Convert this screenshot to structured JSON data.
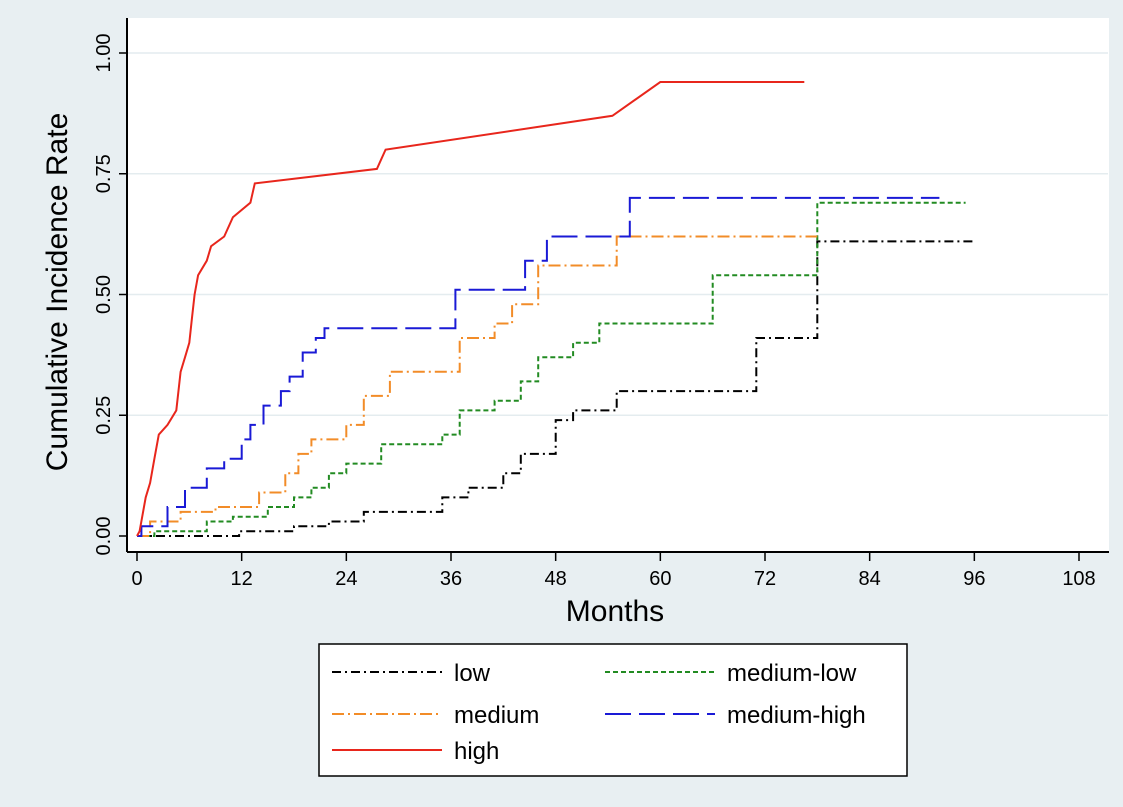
{
  "chart_data": {
    "type": "line",
    "title": "",
    "xlabel": "Months",
    "ylabel": "Cumulative Incidence Rate",
    "xlim": [
      0,
      108
    ],
    "ylim": [
      0,
      1
    ],
    "x_ticks": [
      "0",
      "12",
      "24",
      "36",
      "48",
      "60",
      "72",
      "84",
      "96",
      "108"
    ],
    "y_ticks": [
      "0.00",
      "0.25",
      "0.50",
      "0.75",
      "1.00"
    ],
    "grid": "horizontal",
    "legend_position": "bottom",
    "series": [
      {
        "name": "low",
        "color": "#000000",
        "dash": "dash-dot",
        "points": [
          [
            0,
            0
          ],
          [
            11.7,
            0
          ],
          [
            11.7,
            0.01
          ],
          [
            18,
            0.01
          ],
          [
            18,
            0.02
          ],
          [
            22,
            0.02
          ],
          [
            22,
            0.03
          ],
          [
            26,
            0.03
          ],
          [
            26,
            0.05
          ],
          [
            35,
            0.05
          ],
          [
            35,
            0.08
          ],
          [
            38,
            0.08
          ],
          [
            38,
            0.1
          ],
          [
            42,
            0.1
          ],
          [
            42,
            0.13
          ],
          [
            44,
            0.13
          ],
          [
            44,
            0.17
          ],
          [
            48,
            0.17
          ],
          [
            48,
            0.24
          ],
          [
            50,
            0.24
          ],
          [
            50,
            0.26
          ],
          [
            55,
            0.26
          ],
          [
            55,
            0.3
          ],
          [
            71,
            0.3
          ],
          [
            71,
            0.41
          ],
          [
            78,
            0.41
          ],
          [
            78,
            0.61
          ],
          [
            96,
            0.61
          ]
        ]
      },
      {
        "name": "medium-low",
        "color": "#228b22",
        "dash": "short-dash",
        "points": [
          [
            0,
            0
          ],
          [
            2,
            0
          ],
          [
            2,
            0.01
          ],
          [
            8,
            0.01
          ],
          [
            8,
            0.03
          ],
          [
            11,
            0.03
          ],
          [
            11,
            0.04
          ],
          [
            15,
            0.04
          ],
          [
            15,
            0.06
          ],
          [
            18,
            0.06
          ],
          [
            18,
            0.08
          ],
          [
            20,
            0.08
          ],
          [
            20,
            0.1
          ],
          [
            22,
            0.1
          ],
          [
            22,
            0.13
          ],
          [
            24,
            0.13
          ],
          [
            24,
            0.15
          ],
          [
            28,
            0.15
          ],
          [
            28,
            0.19
          ],
          [
            35,
            0.19
          ],
          [
            35,
            0.21
          ],
          [
            37,
            0.21
          ],
          [
            37,
            0.26
          ],
          [
            41,
            0.26
          ],
          [
            41,
            0.28
          ],
          [
            44,
            0.28
          ],
          [
            44,
            0.32
          ],
          [
            46,
            0.32
          ],
          [
            46,
            0.37
          ],
          [
            50,
            0.37
          ],
          [
            50,
            0.4
          ],
          [
            53,
            0.4
          ],
          [
            53,
            0.44
          ],
          [
            66,
            0.44
          ],
          [
            66,
            0.54
          ],
          [
            78,
            0.54
          ],
          [
            78,
            0.69
          ],
          [
            95,
            0.69
          ]
        ]
      },
      {
        "name": "medium",
        "color": "#f28c28",
        "dash": "long-dash-dot",
        "points": [
          [
            0,
            0
          ],
          [
            1.5,
            0
          ],
          [
            1.5,
            0.03
          ],
          [
            5,
            0.03
          ],
          [
            5,
            0.05
          ],
          [
            9,
            0.05
          ],
          [
            9,
            0.06
          ],
          [
            14,
            0.06
          ],
          [
            14,
            0.09
          ],
          [
            17,
            0.09
          ],
          [
            17,
            0.13
          ],
          [
            18.5,
            0.13
          ],
          [
            18.5,
            0.17
          ],
          [
            20,
            0.17
          ],
          [
            20,
            0.2
          ],
          [
            24,
            0.2
          ],
          [
            24,
            0.23
          ],
          [
            26,
            0.23
          ],
          [
            26,
            0.29
          ],
          [
            29,
            0.29
          ],
          [
            29,
            0.34
          ],
          [
            37,
            0.34
          ],
          [
            37,
            0.41
          ],
          [
            41,
            0.41
          ],
          [
            41,
            0.44
          ],
          [
            43,
            0.44
          ],
          [
            43,
            0.48
          ],
          [
            46,
            0.48
          ],
          [
            46,
            0.56
          ],
          [
            55,
            0.56
          ],
          [
            55,
            0.62
          ],
          [
            78,
            0.62
          ]
        ]
      },
      {
        "name": "medium-high",
        "color": "#1a1ad6",
        "dash": "long-dash",
        "points": [
          [
            0,
            0
          ],
          [
            0.5,
            0
          ],
          [
            0.5,
            0.02
          ],
          [
            3.5,
            0.02
          ],
          [
            3.5,
            0.06
          ],
          [
            5.5,
            0.06
          ],
          [
            5.5,
            0.1
          ],
          [
            8,
            0.1
          ],
          [
            8,
            0.14
          ],
          [
            10,
            0.14
          ],
          [
            10,
            0.16
          ],
          [
            12,
            0.16
          ],
          [
            12,
            0.2
          ],
          [
            13,
            0.2
          ],
          [
            13,
            0.23
          ],
          [
            14.5,
            0.23
          ],
          [
            14.5,
            0.27
          ],
          [
            16.5,
            0.27
          ],
          [
            16.5,
            0.3
          ],
          [
            17.5,
            0.3
          ],
          [
            17.5,
            0.33
          ],
          [
            19,
            0.33
          ],
          [
            19,
            0.38
          ],
          [
            20.5,
            0.38
          ],
          [
            20.5,
            0.41
          ],
          [
            21.5,
            0.41
          ],
          [
            21.5,
            0.43
          ],
          [
            36.5,
            0.43
          ],
          [
            36.5,
            0.51
          ],
          [
            44.5,
            0.51
          ],
          [
            44.5,
            0.57
          ],
          [
            47,
            0.57
          ],
          [
            47,
            0.62
          ],
          [
            56.5,
            0.62
          ],
          [
            56.5,
            0.7
          ],
          [
            92,
            0.7
          ]
        ]
      },
      {
        "name": "high",
        "color": "#e8261c",
        "dash": "solid",
        "points": [
          [
            0,
            0
          ],
          [
            0.3,
            0.01
          ],
          [
            1,
            0.08
          ],
          [
            1.5,
            0.11
          ],
          [
            2,
            0.16
          ],
          [
            2.5,
            0.21
          ],
          [
            3.5,
            0.23
          ],
          [
            4.5,
            0.26
          ],
          [
            5,
            0.34
          ],
          [
            5.5,
            0.37
          ],
          [
            6,
            0.4
          ],
          [
            6.3,
            0.45
          ],
          [
            6.6,
            0.5
          ],
          [
            7,
            0.54
          ],
          [
            8,
            0.57
          ],
          [
            8.5,
            0.6
          ],
          [
            10,
            0.62
          ],
          [
            11,
            0.66
          ],
          [
            13,
            0.69
          ],
          [
            13.5,
            0.73
          ],
          [
            27.5,
            0.76
          ],
          [
            28.5,
            0.8
          ],
          [
            54.5,
            0.87
          ],
          [
            60,
            0.94
          ],
          [
            76.5,
            0.94
          ]
        ]
      }
    ]
  }
}
